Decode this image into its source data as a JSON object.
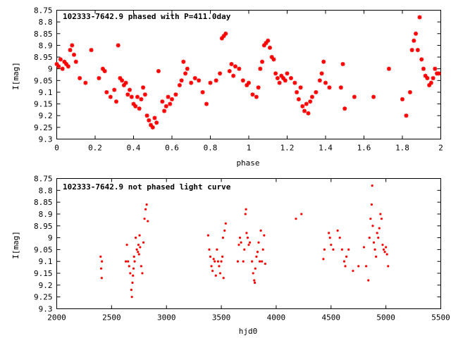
{
  "chart_data": [
    {
      "type": "scatter",
      "title": "102333-7642.9 phased with P=411.0day",
      "xlabel": "phase",
      "ylabel": "I[mag]",
      "xlim": [
        0,
        2
      ],
      "ylim": [
        9.3,
        8.75
      ],
      "y_inverted": true,
      "grid": false,
      "marker": "star",
      "color": "#ff0000",
      "xticks": [
        "0",
        "0.2",
        "0.4",
        "0.6",
        "0.8",
        "1",
        "1.2",
        "1.4",
        "1.6",
        "1.8",
        "2"
      ],
      "yticks": [
        "8.75",
        "8.8",
        "8.85",
        "8.9",
        "8.95",
        "9",
        "9.05",
        "9.1",
        "9.15",
        "9.2",
        "9.25",
        "9.3"
      ],
      "series": [
        {
          "points": [
            [
              0.0,
              8.98
            ],
            [
              0.01,
              8.99
            ],
            [
              0.02,
              8.96
            ],
            [
              0.03,
              9.0
            ],
            [
              0.04,
              8.97
            ],
            [
              0.05,
              8.98
            ],
            [
              0.06,
              8.99
            ],
            [
              0.07,
              8.92
            ],
            [
              0.08,
              8.9
            ],
            [
              0.09,
              8.94
            ],
            [
              0.1,
              8.97
            ],
            [
              0.12,
              9.04
            ],
            [
              0.15,
              9.06
            ],
            [
              0.18,
              8.92
            ],
            [
              0.22,
              9.04
            ],
            [
              0.24,
              9.0
            ],
            [
              0.25,
              9.01
            ],
            [
              0.26,
              9.1
            ],
            [
              0.28,
              9.12
            ],
            [
              0.3,
              9.09
            ],
            [
              0.31,
              9.14
            ],
            [
              0.32,
              8.9
            ],
            [
              0.33,
              9.04
            ],
            [
              0.34,
              9.05
            ],
            [
              0.35,
              9.07
            ],
            [
              0.36,
              9.06
            ],
            [
              0.37,
              9.11
            ],
            [
              0.38,
              9.09
            ],
            [
              0.39,
              9.12
            ],
            [
              0.4,
              9.15
            ],
            [
              0.41,
              9.16
            ],
            [
              0.42,
              9.12
            ],
            [
              0.43,
              9.17
            ],
            [
              0.44,
              9.13
            ],
            [
              0.45,
              9.08
            ],
            [
              0.46,
              9.11
            ],
            [
              0.47,
              9.2
            ],
            [
              0.48,
              9.22
            ],
            [
              0.49,
              9.24
            ],
            [
              0.5,
              9.25
            ],
            [
              0.51,
              9.21
            ],
            [
              0.52,
              9.23
            ],
            [
              0.53,
              9.01
            ],
            [
              0.55,
              9.14
            ],
            [
              0.56,
              9.18
            ],
            [
              0.57,
              9.16
            ],
            [
              0.58,
              9.12
            ],
            [
              0.59,
              9.15
            ],
            [
              0.6,
              9.13
            ],
            [
              0.62,
              9.11
            ],
            [
              0.64,
              9.07
            ],
            [
              0.65,
              9.05
            ],
            [
              0.66,
              8.97
            ],
            [
              0.67,
              9.02
            ],
            [
              0.68,
              9.0
            ],
            [
              0.7,
              9.06
            ],
            [
              0.72,
              9.04
            ],
            [
              0.74,
              9.05
            ],
            [
              0.76,
              9.1
            ],
            [
              0.78,
              9.15
            ],
            [
              0.8,
              9.06
            ],
            [
              0.83,
              9.05
            ],
            [
              0.85,
              9.02
            ],
            [
              0.86,
              8.87
            ],
            [
              0.87,
              8.86
            ],
            [
              0.88,
              8.85
            ],
            [
              0.9,
              9.01
            ],
            [
              0.91,
              8.98
            ],
            [
              0.92,
              9.03
            ],
            [
              0.93,
              8.99
            ],
            [
              0.95,
              9.0
            ],
            [
              0.97,
              9.05
            ],
            [
              0.99,
              9.07
            ],
            [
              1.0,
              9.06
            ],
            [
              1.02,
              9.11
            ],
            [
              1.04,
              9.12
            ],
            [
              1.05,
              9.08
            ],
            [
              1.06,
              9.0
            ],
            [
              1.07,
              8.97
            ],
            [
              1.08,
              8.9
            ],
            [
              1.09,
              8.89
            ],
            [
              1.1,
              8.88
            ],
            [
              1.11,
              8.91
            ],
            [
              1.12,
              8.95
            ],
            [
              1.13,
              8.96
            ],
            [
              1.14,
              9.02
            ],
            [
              1.15,
              9.04
            ],
            [
              1.16,
              9.06
            ],
            [
              1.17,
              9.03
            ],
            [
              1.18,
              9.04
            ],
            [
              1.19,
              9.05
            ],
            [
              1.2,
              9.02
            ],
            [
              1.22,
              9.04
            ],
            [
              1.24,
              9.06
            ],
            [
              1.25,
              9.1
            ],
            [
              1.26,
              9.13
            ],
            [
              1.27,
              9.08
            ],
            [
              1.28,
              9.16
            ],
            [
              1.29,
              9.18
            ],
            [
              1.3,
              9.15
            ],
            [
              1.31,
              9.19
            ],
            [
              1.32,
              9.14
            ],
            [
              1.33,
              9.12
            ],
            [
              1.35,
              9.1
            ],
            [
              1.37,
              9.05
            ],
            [
              1.38,
              9.02
            ],
            [
              1.39,
              8.97
            ],
            [
              1.4,
              9.06
            ],
            [
              1.42,
              9.08
            ],
            [
              1.48,
              9.08
            ],
            [
              1.49,
              8.98
            ],
            [
              1.5,
              9.17
            ],
            [
              1.55,
              9.12
            ],
            [
              1.65,
              9.12
            ],
            [
              1.73,
              9.0
            ],
            [
              1.8,
              9.13
            ],
            [
              1.82,
              9.2
            ],
            [
              1.84,
              9.1
            ],
            [
              1.85,
              8.92
            ],
            [
              1.86,
              8.88
            ],
            [
              1.87,
              8.85
            ],
            [
              1.88,
              8.92
            ],
            [
              1.89,
              8.78
            ],
            [
              1.9,
              8.96
            ],
            [
              1.91,
              9.0
            ],
            [
              1.92,
              9.03
            ],
            [
              1.93,
              9.04
            ],
            [
              1.94,
              9.07
            ],
            [
              1.95,
              9.06
            ],
            [
              1.96,
              9.04
            ],
            [
              1.97,
              9.0
            ],
            [
              1.98,
              9.02
            ],
            [
              1.99,
              9.02
            ]
          ]
        }
      ]
    },
    {
      "type": "scatter",
      "title": "102333-7642.9 not phased light curve",
      "xlabel": "hjd0",
      "ylabel": "I[mag]",
      "xlim": [
        2000,
        5500
      ],
      "ylim": [
        9.3,
        8.75
      ],
      "y_inverted": true,
      "grid": false,
      "marker": "dot",
      "color": "#ff0000",
      "xticks": [
        "2000",
        "2500",
        "3000",
        "3500",
        "4000",
        "4500",
        "5000",
        "5500"
      ],
      "yticks": [
        "8.75",
        "8.8",
        "8.85",
        "8.9",
        "8.95",
        "9",
        "9.05",
        "9.1",
        "9.15",
        "9.2",
        "9.25",
        "9.3"
      ],
      "series": [
        {
          "points": [
            [
              2400,
              9.08
            ],
            [
              2405,
              9.13
            ],
            [
              2410,
              9.17
            ],
            [
              2412,
              9.1
            ],
            [
              2630,
              9.1
            ],
            [
              2640,
              9.03
            ],
            [
              2650,
              9.1
            ],
            [
              2660,
              9.12
            ],
            [
              2670,
              9.15
            ],
            [
              2680,
              9.22
            ],
            [
              2685,
              9.25
            ],
            [
              2690,
              9.19
            ],
            [
              2695,
              9.16
            ],
            [
              2700,
              9.13
            ],
            [
              2705,
              9.08
            ],
            [
              2710,
              9.1
            ],
            [
              2720,
              9.0
            ],
            [
              2730,
              9.05
            ],
            [
              2740,
              9.06
            ],
            [
              2745,
              9.03
            ],
            [
              2750,
              9.07
            ],
            [
              2755,
              8.99
            ],
            [
              2760,
              9.04
            ],
            [
              2770,
              9.12
            ],
            [
              2780,
              9.15
            ],
            [
              2790,
              9.02
            ],
            [
              2800,
              8.92
            ],
            [
              2810,
              8.88
            ],
            [
              2820,
              8.86
            ],
            [
              2830,
              8.93
            ],
            [
              3380,
              8.99
            ],
            [
              3390,
              9.05
            ],
            [
              3400,
              9.08
            ],
            [
              3410,
              9.12
            ],
            [
              3420,
              9.14
            ],
            [
              3430,
              9.09
            ],
            [
              3440,
              9.1
            ],
            [
              3450,
              9.16
            ],
            [
              3460,
              9.05
            ],
            [
              3470,
              9.1
            ],
            [
              3480,
              9.12
            ],
            [
              3490,
              9.15
            ],
            [
              3500,
              9.1
            ],
            [
              3510,
              9.08
            ],
            [
              3515,
              9.0
            ],
            [
              3520,
              9.17
            ],
            [
              3530,
              8.97
            ],
            [
              3540,
              8.94
            ],
            [
              3650,
              9.1
            ],
            [
              3660,
              9.03
            ],
            [
              3670,
              9.0
            ],
            [
              3680,
              9.02
            ],
            [
              3700,
              9.1
            ],
            [
              3710,
              9.05
            ],
            [
              3720,
              8.9
            ],
            [
              3725,
              8.88
            ],
            [
              3730,
              8.98
            ],
            [
              3740,
              9.0
            ],
            [
              3750,
              9.03
            ],
            [
              3760,
              9.02
            ],
            [
              3780,
              9.1
            ],
            [
              3790,
              9.15
            ],
            [
              3800,
              9.18
            ],
            [
              3805,
              9.19
            ],
            [
              3810,
              9.13
            ],
            [
              3820,
              9.08
            ],
            [
              3830,
              9.06
            ],
            [
              3840,
              9.02
            ],
            [
              3850,
              9.1
            ],
            [
              3860,
              8.97
            ],
            [
              3870,
              9.1
            ],
            [
              3880,
              9.05
            ],
            [
              3890,
              8.99
            ],
            [
              3900,
              9.11
            ],
            [
              4180,
              8.92
            ],
            [
              4230,
              8.9
            ],
            [
              4430,
              9.09
            ],
            [
              4440,
              9.05
            ],
            [
              4480,
              8.98
            ],
            [
              4490,
              9.0
            ],
            [
              4500,
              9.03
            ],
            [
              4520,
              9.05
            ],
            [
              4560,
              8.97
            ],
            [
              4580,
              9.0
            ],
            [
              4600,
              9.05
            ],
            [
              4620,
              9.1
            ],
            [
              4630,
              9.12
            ],
            [
              4640,
              9.08
            ],
            [
              4660,
              9.05
            ],
            [
              4700,
              9.14
            ],
            [
              4750,
              9.12
            ],
            [
              4800,
              9.04
            ],
            [
              4820,
              9.12
            ],
            [
              4840,
              9.18
            ],
            [
              4850,
              9.0
            ],
            [
              4860,
              8.92
            ],
            [
              4870,
              8.86
            ],
            [
              4875,
              8.78
            ],
            [
              4880,
              8.95
            ],
            [
              4890,
              9.02
            ],
            [
              4900,
              9.05
            ],
            [
              4910,
              9.08
            ],
            [
              4920,
              8.98
            ],
            [
              4930,
              9.0
            ],
            [
              4940,
              8.96
            ],
            [
              4950,
              8.9
            ],
            [
              4960,
              8.92
            ],
            [
              4970,
              9.03
            ],
            [
              4980,
              9.05
            ],
            [
              4990,
              9.06
            ],
            [
              5000,
              9.04
            ],
            [
              5010,
              9.07
            ],
            [
              5020,
              9.12
            ]
          ]
        }
      ]
    }
  ]
}
